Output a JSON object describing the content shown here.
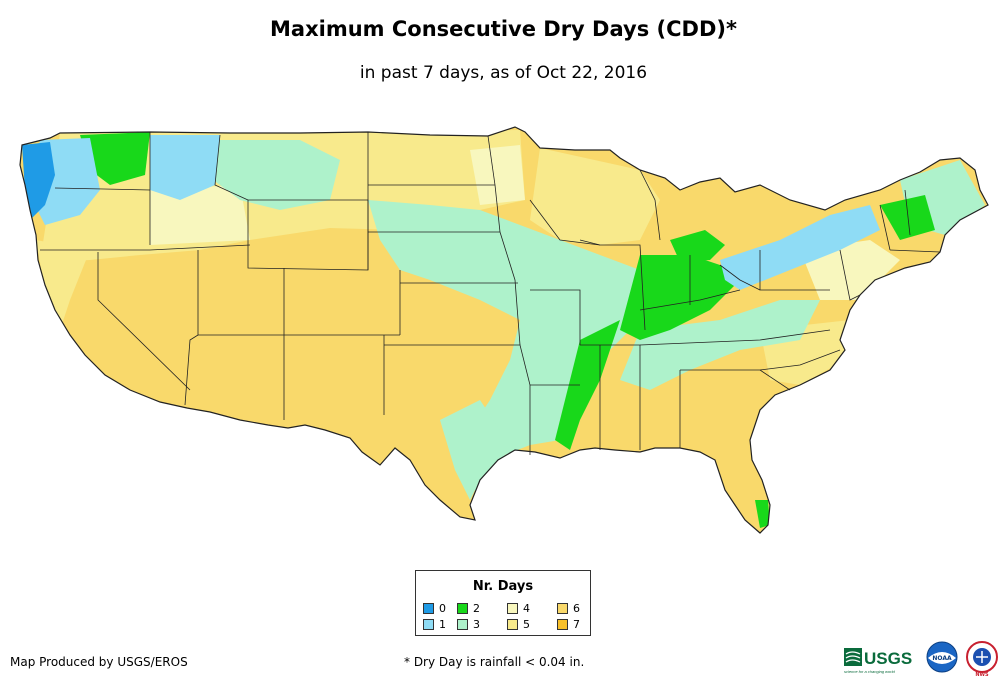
{
  "header": {
    "title": "Maximum Consecutive Dry Days (CDD)*",
    "subtitle": "in past 7 days, as of Oct 22, 2016"
  },
  "legend": {
    "title": "Nr. Days",
    "items": [
      {
        "label": "0",
        "color": "#1f9be6"
      },
      {
        "label": "1",
        "color": "#8fdcf5"
      },
      {
        "label": "2",
        "color": "#18d81a"
      },
      {
        "label": "3",
        "color": "#aef2cb"
      },
      {
        "label": "4",
        "color": "#f8f7be"
      },
      {
        "label": "5",
        "color": "#f8ea8c"
      },
      {
        "label": "6",
        "color": "#f9d96b"
      },
      {
        "label": "7",
        "color": "#f8c02a"
      }
    ]
  },
  "footer": {
    "credit": "Map Produced by USGS/EROS",
    "note": "* Dry Day is rainfall < 0.04 in."
  },
  "logos": {
    "usgs_text": "USGS",
    "usgs_tagline": "science for a changing world",
    "noaa_text": "NOAA",
    "nws_text": "NWS"
  },
  "map": {
    "region": "contiguous-united-states",
    "metric": "max-consecutive-dry-days"
  }
}
